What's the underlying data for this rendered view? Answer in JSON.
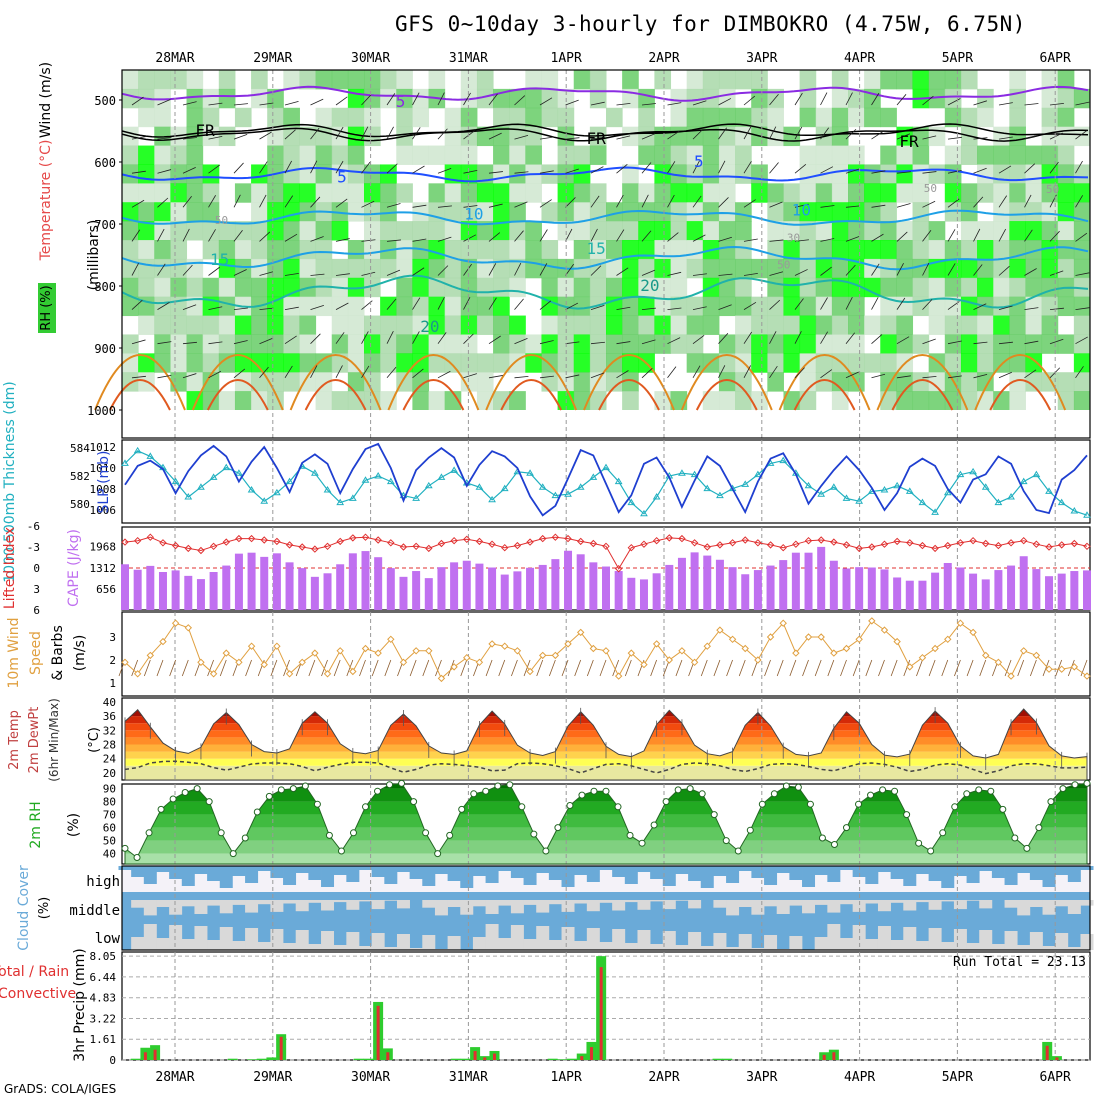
{
  "title": "GFS 0~10day 3-hourly for DIMBOKRO (4.75W, 6.75N)",
  "credit": "GrADS: COLA/IGES",
  "colors": {
    "rh_dark": "#33cc33",
    "rh_bright": "#00ff00",
    "rh_light": "#cfe6cf",
    "temp_purple": "#8a2be2",
    "temp_black": "#000000",
    "temp_blue": "#1f4fff",
    "temp_cyan": "#1ea0e6",
    "temp_teal": "#20b2aa",
    "temp_orange": "#e08a20",
    "slp": "#1f3fd0",
    "thickness": "#20b0c0",
    "lifted": "#e03030",
    "cape": "#c070f0",
    "wind": "#e0a040",
    "barb": "#8b5a2b",
    "cloud": "#6aaad8",
    "precip_total": "#2ecc2e",
    "precip_conv": "#e03030"
  },
  "chart_data": [
    {
      "type": "heatmap",
      "panel": "upper-air",
      "xticks": [
        "28MAR",
        "29MAR",
        "30MAR",
        "31MAR",
        "1APR",
        "2APR",
        "3APR",
        "4APR",
        "5APR",
        "6APR"
      ],
      "yticks": [
        "500",
        "600",
        "700",
        "800",
        "900",
        "1000"
      ],
      "ylabel_parts": [
        "Wind (m/s)",
        "Temperature (°C)",
        "RH (%)",
        "(millibars)"
      ],
      "contour_labels": [
        {
          "text": "5",
          "x": 2.8,
          "p": 503
        },
        {
          "text": "FR",
          "x": 0.75,
          "p": 550
        },
        {
          "text": "FR",
          "x": 4.75,
          "p": 563
        },
        {
          "text": "FR",
          "x": 7.95,
          "p": 568
        },
        {
          "text": "5",
          "x": 2.2,
          "p": 625
        },
        {
          "text": "5",
          "x": 5.85,
          "p": 600
        },
        {
          "text": "10",
          "x": 3.5,
          "p": 685
        },
        {
          "text": "10",
          "x": 6.85,
          "p": 678
        },
        {
          "text": "15",
          "x": 0.9,
          "p": 758
        },
        {
          "text": "15",
          "x": 4.75,
          "p": 740
        },
        {
          "text": "20",
          "x": 5.3,
          "p": 800
        },
        {
          "text": "20",
          "x": 3.05,
          "p": 866
        },
        {
          "text": "50",
          "x": 8.2,
          "p": 640
        },
        {
          "text": "50",
          "x": 9.45,
          "p": 642
        },
        {
          "text": "50",
          "x": 0.95,
          "p": 692
        },
        {
          "text": "30",
          "x": 6.8,
          "p": 720
        },
        {
          "text": "50",
          "x": 6.7,
          "p": 764
        }
      ]
    },
    {
      "type": "line",
      "panel": "slp-thickness",
      "ylabel_left": "1000-500mb Thickness (dm)",
      "ylabel_right": "SLP (mb)",
      "thickness_ticks": [
        "584",
        "582",
        "580"
      ],
      "slp_ticks": [
        "1012",
        "1010",
        "1008",
        "1006"
      ],
      "series": [
        {
          "name": "SLP (mb)",
          "values": [
            1008.4,
            1010.2,
            1010.7,
            1009.9,
            1007.6,
            1009.7,
            1011.2,
            1012.1,
            1011.1,
            1008.7,
            1010.6,
            1012.0,
            1010.0,
            1007.7,
            1010.5,
            1011.3,
            1010.4,
            1007.6,
            1009.9,
            1011.8,
            1012.3,
            1010.0,
            1006.9,
            1009.8,
            1011.0,
            1011.9,
            1011.0,
            1008.3,
            1010.3,
            1011.6,
            1011.1,
            1010.0,
            1007.3,
            1005.5,
            1006.4,
            1009.0,
            1011.7,
            1011.2,
            1008.5,
            1005.8,
            1007.4,
            1010.4,
            1011.0,
            1009.1,
            1006.3,
            1008.8,
            1011.1,
            1010.2,
            1008.0,
            1005.8,
            1008.7,
            1010.9,
            1011.4,
            1009.4,
            1006.6,
            1008.3,
            1009.8,
            1011.1,
            1009.8,
            1008.1,
            1006.0,
            1007.6,
            1010.1,
            1010.9,
            1010.2,
            1008.0,
            1006.7,
            1008.9,
            1009.4,
            1011.1,
            1010.4,
            1007.8,
            1006.0,
            1005.7,
            1008.9,
            1009.8,
            1011.2
          ]
        },
        {
          "name": "1000-500mb Thickness (dm)",
          "values": [
            582.9,
            583.8,
            583.4,
            582.6,
            581.6,
            580.5,
            581.2,
            581.9,
            582.6,
            582.2,
            581.0,
            580.2,
            580.8,
            581.6,
            582.7,
            582.2,
            581.0,
            580.1,
            580.4,
            581.7,
            582.0,
            581.6,
            580.6,
            580.4,
            581.3,
            581.9,
            582.4,
            581.5,
            581.2,
            580.3,
            581.1,
            582.3,
            582.2,
            581.2,
            580.6,
            580.7,
            581.2,
            581.9,
            582.6,
            581.6,
            580.1,
            579.3,
            580.5,
            582.0,
            582.2,
            582.1,
            581.1,
            580.6,
            581.1,
            581.4,
            582.1,
            582.9,
            583.1,
            582.2,
            581.3,
            580.7,
            581.2,
            580.4,
            580.2,
            580.9,
            581.0,
            581.3,
            580.9,
            580.1,
            579.4,
            580.8,
            582.1,
            582.3,
            581.2,
            580.1,
            580.5,
            581.6,
            582.1,
            580.9,
            580.1,
            579.5,
            579.2
          ]
        }
      ]
    },
    {
      "type": "bar",
      "panel": "cape-li",
      "ylabel_left": "Lifted Index",
      "ylabel_right": "CAPE (J/kg)",
      "li_ticks": [
        "-6",
        "-3",
        "0",
        "3",
        "6"
      ],
      "cape_ticks": [
        "1968",
        "1312",
        "656"
      ],
      "series": [
        {
          "name": "CAPE (J/kg)",
          "values": [
            1420,
            1250,
            1370,
            1180,
            1230,
            1060,
            960,
            1180,
            1380,
            1750,
            1780,
            1650,
            1760,
            1480,
            1300,
            1030,
            1140,
            1420,
            1760,
            1830,
            1640,
            1300,
            1030,
            1210,
            990,
            1330,
            1480,
            1530,
            1440,
            1320,
            1100,
            1200,
            1310,
            1400,
            1580,
            1840,
            1730,
            1480,
            1350,
            1210,
            1000,
            950,
            1140,
            1400,
            1620,
            1790,
            1690,
            1560,
            1330,
            1110,
            1240,
            1380,
            1550,
            1780,
            1780,
            1960,
            1530,
            1290,
            1330,
            1320,
            1260,
            1010,
            910,
            910,
            1160,
            1460,
            1320,
            1130,
            950,
            1240,
            1380,
            1670,
            1270,
            1050,
            1130,
            1210,
            1230
          ]
        },
        {
          "name": "Lifted Index",
          "values": [
            -3.7,
            -3.9,
            -4.4,
            -3.6,
            -3.2,
            -2.8,
            -2.5,
            -3.1,
            -3.7,
            -4.2,
            -4.2,
            -4.0,
            -3.8,
            -3.3,
            -3.0,
            -2.7,
            -3.1,
            -3.8,
            -4.3,
            -4.4,
            -4.0,
            -3.6,
            -3.0,
            -3.1,
            -2.8,
            -3.5,
            -3.9,
            -4.1,
            -3.8,
            -3.4,
            -2.9,
            -3.2,
            -3.7,
            -4.2,
            -4.4,
            -4.2,
            -3.8,
            -3.5,
            -3.1,
            0.1,
            -2.9,
            -3.4,
            -3.9,
            -4.3,
            -4.2,
            -3.6,
            -3.0,
            -3.3,
            -3.6,
            -4.0,
            -3.6,
            -3.3,
            -2.9,
            -3.4,
            -3.9,
            -4.0,
            -3.7,
            -3.3,
            -2.8,
            -3.0,
            -3.4,
            -3.8,
            -3.6,
            -3.2,
            -2.8,
            -3.2,
            -3.6,
            -3.9,
            -3.5,
            -3.2,
            -3.6,
            -3.9,
            -3.4,
            -3.0,
            -3.3,
            -3.5,
            -3.1
          ]
        }
      ]
    },
    {
      "type": "line",
      "panel": "10m-wind",
      "ylabel": "10m Wind Speed & Barbs (m/s)",
      "yticks": [
        "3",
        "2",
        "1"
      ],
      "values": [
        1.9,
        1.4,
        2.2,
        2.8,
        3.6,
        3.4,
        1.9,
        1.4,
        2.3,
        1.9,
        2.6,
        1.8,
        2.6,
        1.4,
        1.9,
        2.3,
        1.4,
        2.4,
        1.5,
        2.5,
        2.3,
        2.9,
        1.9,
        2.4,
        2.4,
        1.2,
        1.7,
        2.1,
        1.9,
        2.7,
        2.6,
        2.4,
        1.5,
        2.2,
        2.2,
        2.7,
        3.2,
        2.5,
        2.4,
        1.3,
        2.3,
        1.8,
        2.7,
        2.0,
        2.4,
        1.9,
        2.6,
        3.3,
        2.9,
        2.5,
        2.0,
        3.0,
        3.6,
        2.3,
        3.0,
        3.0,
        2.3,
        2.5,
        2.9,
        3.7,
        3.3,
        2.8,
        1.7,
        2.1,
        2.5,
        2.9,
        3.6,
        3.2,
        2.2,
        1.9,
        1.3,
        2.4,
        2.2,
        1.6,
        1.6,
        1.7,
        1.3
      ]
    },
    {
      "type": "area",
      "panel": "2m-temp",
      "ylabel": "2m Temp 2m DewPt (6hr Min/Max) (°C)",
      "yticks": [
        "40",
        "36",
        "32",
        "28",
        "24",
        "20"
      ],
      "series": [
        {
          "name": "2m Temp",
          "values": [
            34.5,
            37.8,
            33.0,
            28.4,
            26.2,
            25.5,
            27.2,
            33.8,
            37.0,
            33.6,
            28.0,
            26.0,
            25.6,
            26.8,
            34.0,
            37.2,
            34.0,
            28.2,
            25.9,
            25.4,
            26.3,
            33.4,
            36.6,
            33.2,
            27.6,
            25.6,
            25.2,
            26.2,
            33.5,
            37.4,
            33.8,
            27.8,
            25.6,
            24.9,
            26.0,
            33.2,
            37.2,
            33.4,
            27.5,
            25.2,
            24.6,
            26.2,
            33.6,
            37.6,
            34.0,
            27.8,
            25.4,
            24.8,
            26.0,
            33.4,
            37.0,
            33.2,
            27.4,
            25.2,
            24.8,
            25.6,
            32.6,
            37.2,
            34.0,
            28.0,
            25.0,
            24.5,
            25.3,
            33.4,
            37.4,
            34.0,
            27.6,
            24.8,
            24.2,
            25.2,
            34.0,
            38.0,
            34.2,
            27.6,
            24.8,
            24.2,
            24.6
          ]
        },
        {
          "name": "2m DewPt",
          "values": [
            21.0,
            21.5,
            22.8,
            23.2,
            23.3,
            23.0,
            22.6,
            21.5,
            20.8,
            21.6,
            22.5,
            22.8,
            22.8,
            22.6,
            21.8,
            20.6,
            21.6,
            22.4,
            23.0,
            23.0,
            22.8,
            21.4,
            20.2,
            21.0,
            22.2,
            22.6,
            22.4,
            22.0,
            21.6,
            20.6,
            20.8,
            22.6,
            22.8,
            22.6,
            22.0,
            21.2,
            20.0,
            21.2,
            22.4,
            22.6,
            22.0,
            21.0,
            20.0,
            21.0,
            22.4,
            22.8,
            22.6,
            22.0,
            21.0,
            20.4,
            21.2,
            22.4,
            22.6,
            22.4,
            21.8,
            21.0,
            20.6,
            21.6,
            22.6,
            22.8,
            22.4,
            21.6,
            20.4,
            21.0,
            22.2,
            22.6,
            22.2,
            21.0,
            19.8,
            20.6,
            22.0,
            22.6,
            22.6,
            22.0,
            21.4,
            21.4,
            21.6
          ]
        }
      ]
    },
    {
      "type": "area",
      "panel": "2m-rh",
      "ylabel": "2m RH (%)",
      "yticks": [
        "90",
        "80",
        "70",
        "60",
        "50",
        "40"
      ],
      "values": [
        44,
        37,
        56,
        74,
        82,
        87,
        90,
        80,
        56,
        40,
        52,
        72,
        84,
        89,
        90,
        92,
        78,
        54,
        42,
        56,
        76,
        88,
        93,
        94,
        80,
        56,
        40,
        54,
        74,
        86,
        88,
        92,
        93,
        76,
        55,
        42,
        60,
        77,
        85,
        88,
        88,
        76,
        54,
        48,
        62,
        80,
        89,
        90,
        86,
        70,
        50,
        42,
        58,
        78,
        86,
        92,
        91,
        78,
        52,
        47,
        60,
        78,
        85,
        89,
        88,
        70,
        48,
        42,
        56,
        76,
        86,
        89,
        88,
        74,
        52,
        44,
        60,
        80,
        90,
        93,
        94
      ]
    },
    {
      "type": "table",
      "panel": "cloud-cover",
      "ylabel": "Cloud Cover (%)",
      "rows": [
        "high",
        "middle",
        "low"
      ]
    },
    {
      "type": "bar",
      "panel": "precip",
      "ylabel": "3hr Precip (mm)",
      "ylabel_left_parts": [
        "Total / Rain",
        "Convective"
      ],
      "yticks": [
        "8.05",
        "6.44",
        "4.83",
        "3.22",
        "1.61",
        "0"
      ],
      "annotation": "Run Total = 23.13",
      "xticks": [
        "28MAR",
        "29MAR",
        "30MAR",
        "31MAR",
        "1APR",
        "2APR",
        "3APR",
        "4APR",
        "5APR",
        "6APR"
      ],
      "series": [
        {
          "name": "Total",
          "values": [
            0,
            0.1,
            0.95,
            1.15,
            0,
            0,
            0,
            0,
            0,
            0,
            0,
            0.1,
            0,
            0.05,
            0.1,
            0.2,
            2.0,
            0,
            0,
            0,
            0,
            0,
            0,
            0,
            0.1,
            0.1,
            4.5,
            0.9,
            0,
            0,
            0,
            0,
            0,
            0,
            0.1,
            0.1,
            1.0,
            0.3,
            0.7,
            0,
            0,
            0,
            0,
            0,
            0.1,
            0.05,
            0.1,
            0.5,
            1.4,
            8.05,
            0,
            0,
            0,
            0,
            0,
            0,
            0,
            0,
            0,
            0,
            0,
            0.1,
            0.1,
            0,
            0,
            0,
            0,
            0,
            0,
            0,
            0,
            0,
            0.6,
            0.8,
            0,
            0,
            0,
            0,
            0,
            0,
            0,
            0,
            0,
            0,
            0,
            0,
            0,
            0,
            0,
            0,
            0,
            0,
            0,
            0,
            0,
            1.4,
            0.3,
            0,
            0,
            0
          ]
        },
        {
          "name": "Convective",
          "values": [
            0,
            0,
            0.6,
            0.8,
            0,
            0,
            0,
            0,
            0,
            0,
            0,
            0,
            0,
            0,
            0,
            0,
            1.8,
            0,
            0,
            0,
            0,
            0,
            0,
            0,
            0,
            0,
            4.2,
            0.6,
            0,
            0,
            0,
            0,
            0,
            0,
            0,
            0,
            0.7,
            0.2,
            0.5,
            0,
            0,
            0,
            0,
            0,
            0,
            0,
            0,
            0.3,
            1.0,
            7.2,
            0,
            0,
            0,
            0,
            0,
            0,
            0,
            0,
            0,
            0,
            0,
            0,
            0,
            0,
            0,
            0,
            0,
            0,
            0,
            0,
            0,
            0,
            0.4,
            0.6,
            0,
            0,
            0,
            0,
            0,
            0,
            0,
            0,
            0,
            0,
            0,
            0,
            0,
            0,
            0,
            0,
            0,
            0,
            0,
            0,
            0,
            1.1,
            0.2,
            0,
            0,
            0
          ]
        }
      ]
    }
  ]
}
